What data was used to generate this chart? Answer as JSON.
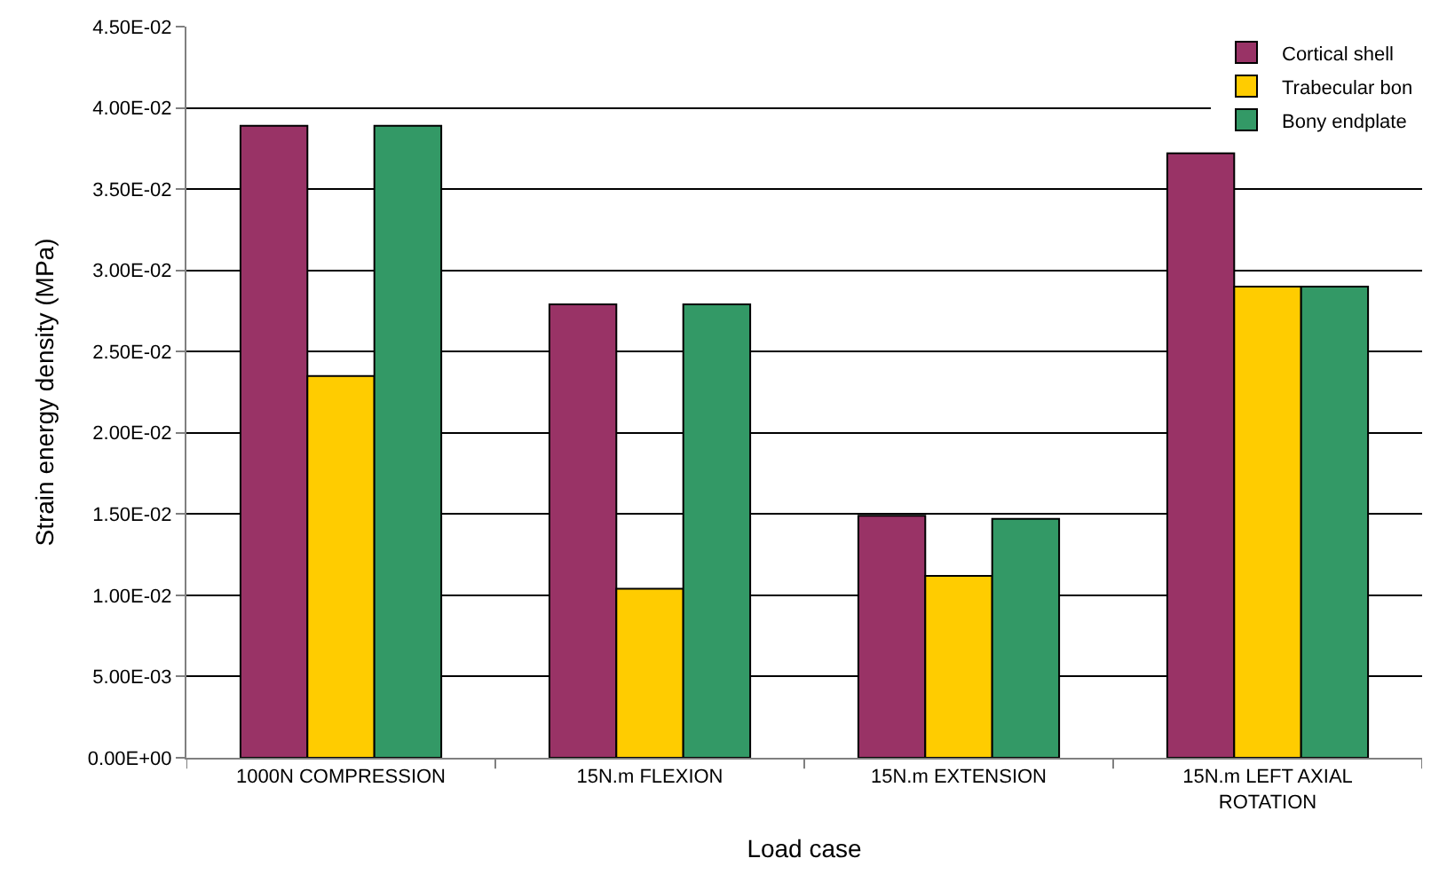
{
  "chart_data": {
    "type": "bar",
    "xlabel": "Load case",
    "ylabel": "Strain energy density (MPa)",
    "categories": [
      "1000N COMPRESSION",
      "15N.m FLEXION",
      "15N.m EXTENSION",
      "15N.m LEFT AXIAL\nROTATION"
    ],
    "series": [
      {
        "name": "Cortical shell",
        "color": "#993366",
        "values": [
          0.0389,
          0.0279,
          0.0149,
          0.0372
        ]
      },
      {
        "name": "Trabecular bon",
        "color": "#ffcc00",
        "values": [
          0.0235,
          0.0104,
          0.0112,
          0.029
        ]
      },
      {
        "name": "Bony endplate",
        "color": "#339966",
        "values": [
          0.0389,
          0.0279,
          0.0147,
          0.029
        ]
      }
    ],
    "ylim": [
      0,
      0.045
    ],
    "yticks": [
      {
        "value": 0,
        "label": "0.00E+00"
      },
      {
        "value": 0.005,
        "label": "5.00E-03"
      },
      {
        "value": 0.01,
        "label": "1.00E-02"
      },
      {
        "value": 0.015,
        "label": "1.50E-02"
      },
      {
        "value": 0.02,
        "label": "2.00E-02"
      },
      {
        "value": 0.025,
        "label": "2.50E-02"
      },
      {
        "value": 0.03,
        "label": "3.00E-02"
      },
      {
        "value": 0.035,
        "label": "3.50E-02"
      },
      {
        "value": 0.04,
        "label": "4.00E-02"
      },
      {
        "value": 0.045,
        "label": "4.50E-02"
      }
    ],
    "grid": "y",
    "legend": "top right"
  }
}
